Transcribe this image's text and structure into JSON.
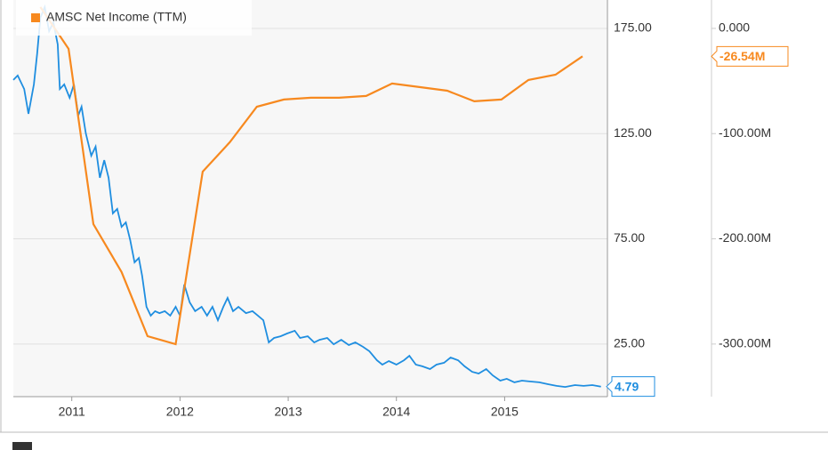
{
  "chart_data": {
    "type": "line",
    "xlim": [
      2010.46,
      2015.95
    ],
    "xticks": [
      2011,
      2012,
      2013,
      2014,
      2015
    ],
    "ylim": [
      0,
      188.5
    ],
    "yticks": [
      {
        "value": 25,
        "label": "25.00"
      },
      {
        "value": 75,
        "label": "75.00"
      },
      {
        "value": 125,
        "label": "125.00"
      },
      {
        "value": 175,
        "label": "175.00"
      }
    ],
    "y2lim": [
      -350,
      27
    ],
    "y2ticks": [
      {
        "value": -300,
        "label": "-300.00M"
      },
      {
        "value": -200,
        "label": "-200.00M"
      },
      {
        "value": -100,
        "label": "-100.00M"
      },
      {
        "value": 0,
        "label": "0.000"
      }
    ],
    "grid": true,
    "series": [
      {
        "color": "#1f8ee0",
        "end_label": "4.79",
        "x": [
          2010.46,
          2010.5,
          2010.56,
          2010.6,
          2010.65,
          2010.68,
          2010.71,
          2010.75,
          2010.79,
          2010.83,
          2010.87,
          2010.89,
          2010.93,
          2010.98,
          2011.02,
          2011.06,
          2011.09,
          2011.13,
          2011.18,
          2011.22,
          2011.26,
          2011.3,
          2011.34,
          2011.38,
          2011.42,
          2011.46,
          2011.5,
          2011.54,
          2011.58,
          2011.62,
          2011.65,
          2011.69,
          2011.73,
          2011.77,
          2011.81,
          2011.86,
          2011.91,
          2011.96,
          2012.0,
          2012.04,
          2012.09,
          2012.14,
          2012.2,
          2012.25,
          2012.3,
          2012.35,
          2012.4,
          2012.44,
          2012.49,
          2012.54,
          2012.61,
          2012.67,
          2012.72,
          2012.77,
          2012.82,
          2012.87,
          2012.93,
          2012.99,
          2013.06,
          2013.11,
          2013.18,
          2013.24,
          2013.29,
          2013.36,
          2013.42,
          2013.49,
          2013.56,
          2013.62,
          2013.69,
          2013.75,
          2013.82,
          2013.87,
          2013.93,
          2014.0,
          2014.07,
          2014.12,
          2014.18,
          2014.24,
          2014.31,
          2014.37,
          2014.44,
          2014.5,
          2014.57,
          2014.63,
          2014.7,
          2014.76,
          2014.83,
          2014.89,
          2014.96,
          2015.02,
          2015.09,
          2015.16,
          2015.24,
          2015.32,
          2015.4,
          2015.48,
          2015.56,
          2015.65,
          2015.73,
          2015.81,
          2015.89
        ],
        "values": [
          150.5,
          152.6,
          146.2,
          134.4,
          148.4,
          163.1,
          180.1,
          185.1,
          173.7,
          177.9,
          167.4,
          146.2,
          148.4,
          142.0,
          148.4,
          133.6,
          137.8,
          125.1,
          114.5,
          118.8,
          104.0,
          112.4,
          104.0,
          87.1,
          89.2,
          80.7,
          82.8,
          74.4,
          63.8,
          65.9,
          57.5,
          42.7,
          38.5,
          40.6,
          39.7,
          40.6,
          38.5,
          42.7,
          38.5,
          53.3,
          44.8,
          40.6,
          42.7,
          38.5,
          42.7,
          36.3,
          42.7,
          46.9,
          40.6,
          42.7,
          39.7,
          40.6,
          38.5,
          36.3,
          25.8,
          27.9,
          28.7,
          30.0,
          31.3,
          27.9,
          28.7,
          25.8,
          27.0,
          27.9,
          24.9,
          27.0,
          24.5,
          25.8,
          23.7,
          21.6,
          17.3,
          15.2,
          16.9,
          15.2,
          17.3,
          19.4,
          15.2,
          14.4,
          13.1,
          15.2,
          16.1,
          18.6,
          17.3,
          14.4,
          11.8,
          11.0,
          13.1,
          10.1,
          7.6,
          8.5,
          6.8,
          7.6,
          7.2,
          6.8,
          5.9,
          5.1,
          4.6,
          5.5,
          5.1,
          5.5,
          4.79
        ]
      },
      {
        "name": "AMSC Net Income (TTM)",
        "color": "#f7891f",
        "axis": "y2",
        "end_label": "-26.54M",
        "x": [
          2010.71,
          2010.97,
          2011.2,
          2011.46,
          2011.7,
          2011.96,
          2012.21,
          2012.46,
          2012.71,
          2012.96,
          2013.21,
          2013.47,
          2013.72,
          2013.96,
          2014.22,
          2014.47,
          2014.72,
          2014.97,
          2015.22,
          2015.47,
          2015.72
        ],
        "values": [
          20.3,
          -19.4,
          -186.0,
          -231.6,
          -292.5,
          -300.1,
          -136.1,
          -108.2,
          -74.4,
          -67.6,
          -65.9,
          -65.9,
          -64.2,
          -52.4,
          -55.8,
          -59.2,
          -69.3,
          -67.6,
          -49.0,
          -44.0,
          -26.54
        ]
      }
    ]
  }
}
